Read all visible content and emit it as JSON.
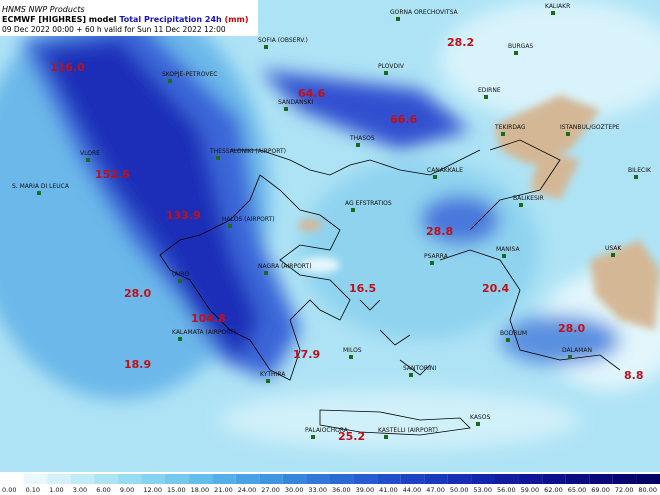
{
  "header": {
    "product": "HNMS NWP Products",
    "model": "ECMWF [HIGHRES] model",
    "field": "Total Precipitation 24h",
    "unit": "(mm)",
    "validity": "09 Dec 2022 00:00 + 60 h valid for Sun 11 Dec 2022 12:00"
  },
  "stations": [
    "GORNA ORECHOVITSA",
    "KALIAKR",
    "SOFIA (OBSERV.)",
    "BURGAS",
    "PLOVDIV",
    "SKOPJE-PETROVEC",
    "SANDANSKI",
    "EDIRNE",
    "TEKIRDAG",
    "ISTANBUL/GOZTEPE",
    "THASOS",
    "VLORE",
    "THESSALONIKI (AIRPORT)",
    "CANAKKALE",
    "BILECIK",
    "S. MARIA DI LEUCA",
    "AG EFSTRATIOS",
    "BALIKESIR",
    "HALOS (AIRPORT)",
    "USAK",
    "PSARRA",
    "MANISA",
    "(AIRO",
    "NAGRA (AIRPORT)",
    "KALAMATA (AIRPORT)",
    "MILOS",
    "SANTORINI",
    "BODRUM",
    "DALAMAN",
    "KYTHIRA",
    "KASOS",
    "PALAIOCHORA",
    "KASTELLI (AIRPORT)"
  ],
  "maxima": [
    "116.0",
    "28.2",
    "64.6",
    "66.6",
    "152.6",
    "133.9",
    "28.8",
    "28.0",
    "104.8",
    "16.5",
    "20.4",
    "28.0",
    "18.9",
    "17.9",
    "8.8",
    "25.2"
  ],
  "colorbar": [
    "0.00",
    "0.10",
    "1.00",
    "3.00",
    "6.00",
    "9.00",
    "12.00",
    "15.00",
    "18.00",
    "21.00",
    "24.00",
    "27.00",
    "30.00",
    "33.00",
    "36.00",
    "39.00",
    "41.00",
    "44.00",
    "47.00",
    "50.00",
    "53.00",
    "56.00",
    "59.00",
    "62.00",
    "65.00",
    "69.00",
    "72.00",
    "80.00"
  ]
}
